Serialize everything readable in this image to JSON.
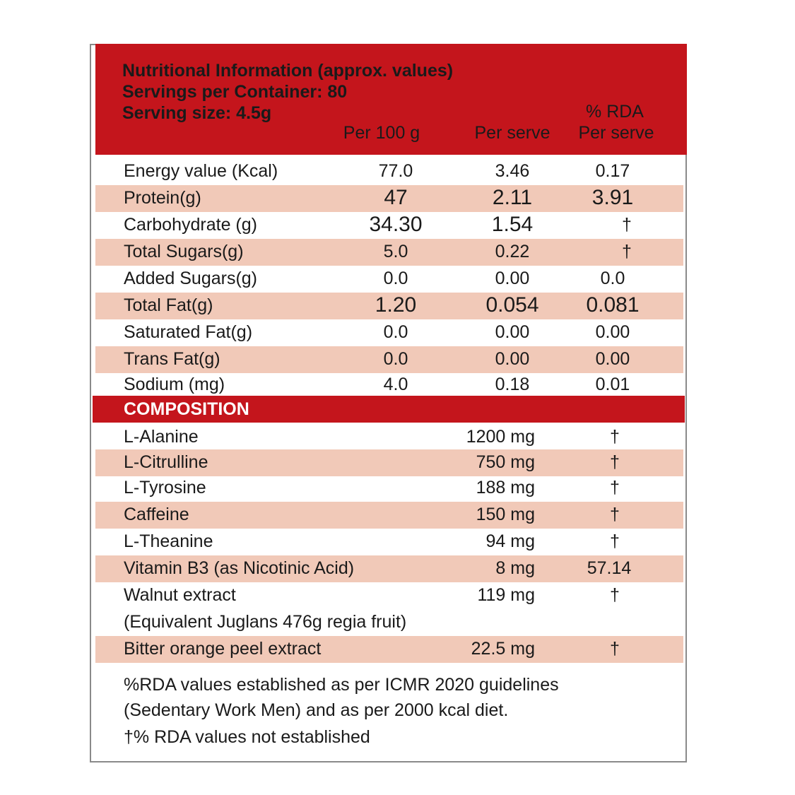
{
  "header": {
    "title": "Nutritional Information (approx. values)",
    "servings": "Servings per Container: 80",
    "serving_size": "Serving size: 4.5g",
    "col_per100": "Per 100 g",
    "col_perserve": "Per serve",
    "col_rda_line1": "% RDA",
    "col_rda_line2": "Per serve"
  },
  "nutrients": [
    {
      "name": "Energy value (Kcal)",
      "per100": "77.0",
      "perserve": "3.46",
      "rda": "0.17"
    },
    {
      "name": "Protein(g)",
      "per100": "47",
      "perserve": "2.11",
      "rda": "3.91"
    },
    {
      "name": "Carbohydrate (g)",
      "per100": "34.30",
      "perserve": "1.54",
      "rda": "†"
    },
    {
      "name": "Total Sugars(g)",
      "per100": "5.0",
      "perserve": "0.22",
      "rda": "†"
    },
    {
      "name": "Added Sugars(g)",
      "per100": "0.0",
      "perserve": "0.00",
      "rda": "0.0"
    },
    {
      "name": "Total Fat(g)",
      "per100": "1.20",
      "perserve": "0.054",
      "rda": "0.081"
    },
    {
      "name": "Saturated Fat(g)",
      "per100": "0.0",
      "perserve": "0.00",
      "rda": "0.00"
    },
    {
      "name": "Trans Fat(g)",
      "per100": "0.0",
      "perserve": "0.00",
      "rda": "0.00"
    },
    {
      "name": "Sodium (mg)",
      "per100": "4.0",
      "perserve": "0.18",
      "rda": "0.01"
    }
  ],
  "composition": {
    "heading": "COMPOSITION",
    "items": [
      {
        "name": "L-Alanine",
        "amount": "1200 mg",
        "rda": "†"
      },
      {
        "name": "L-Citrulline",
        "amount": "750 mg",
        "rda": "†"
      },
      {
        "name": "L-Tyrosine",
        "amount": "188 mg",
        "rda": "†"
      },
      {
        "name": "Caffeine",
        "amount": "150 mg",
        "rda": "†"
      },
      {
        "name": "L-Theanine",
        "amount": "94 mg",
        "rda": "†"
      },
      {
        "name": "Vitamin B3 (as Nicotinic Acid)",
        "amount": "8 mg",
        "rda": "57.14"
      },
      {
        "name": "Walnut extract",
        "amount": "119 mg",
        "rda": "†"
      },
      {
        "name": "Bitter orange peel extract",
        "amount": "22.5 mg",
        "rda": "†"
      }
    ],
    "walnut_note": "(Equivalent Juglans 476g regia fruit)"
  },
  "footnotes": {
    "line1": "%RDA values established as per ICMR 2020 guidelines",
    "line2": "(Sedentary Work Men) and as per 2000 kcal diet.",
    "line3": "†% RDA values not established"
  },
  "colors": {
    "header_red": "#c4151c",
    "row_shade": "#f1c9b8"
  }
}
